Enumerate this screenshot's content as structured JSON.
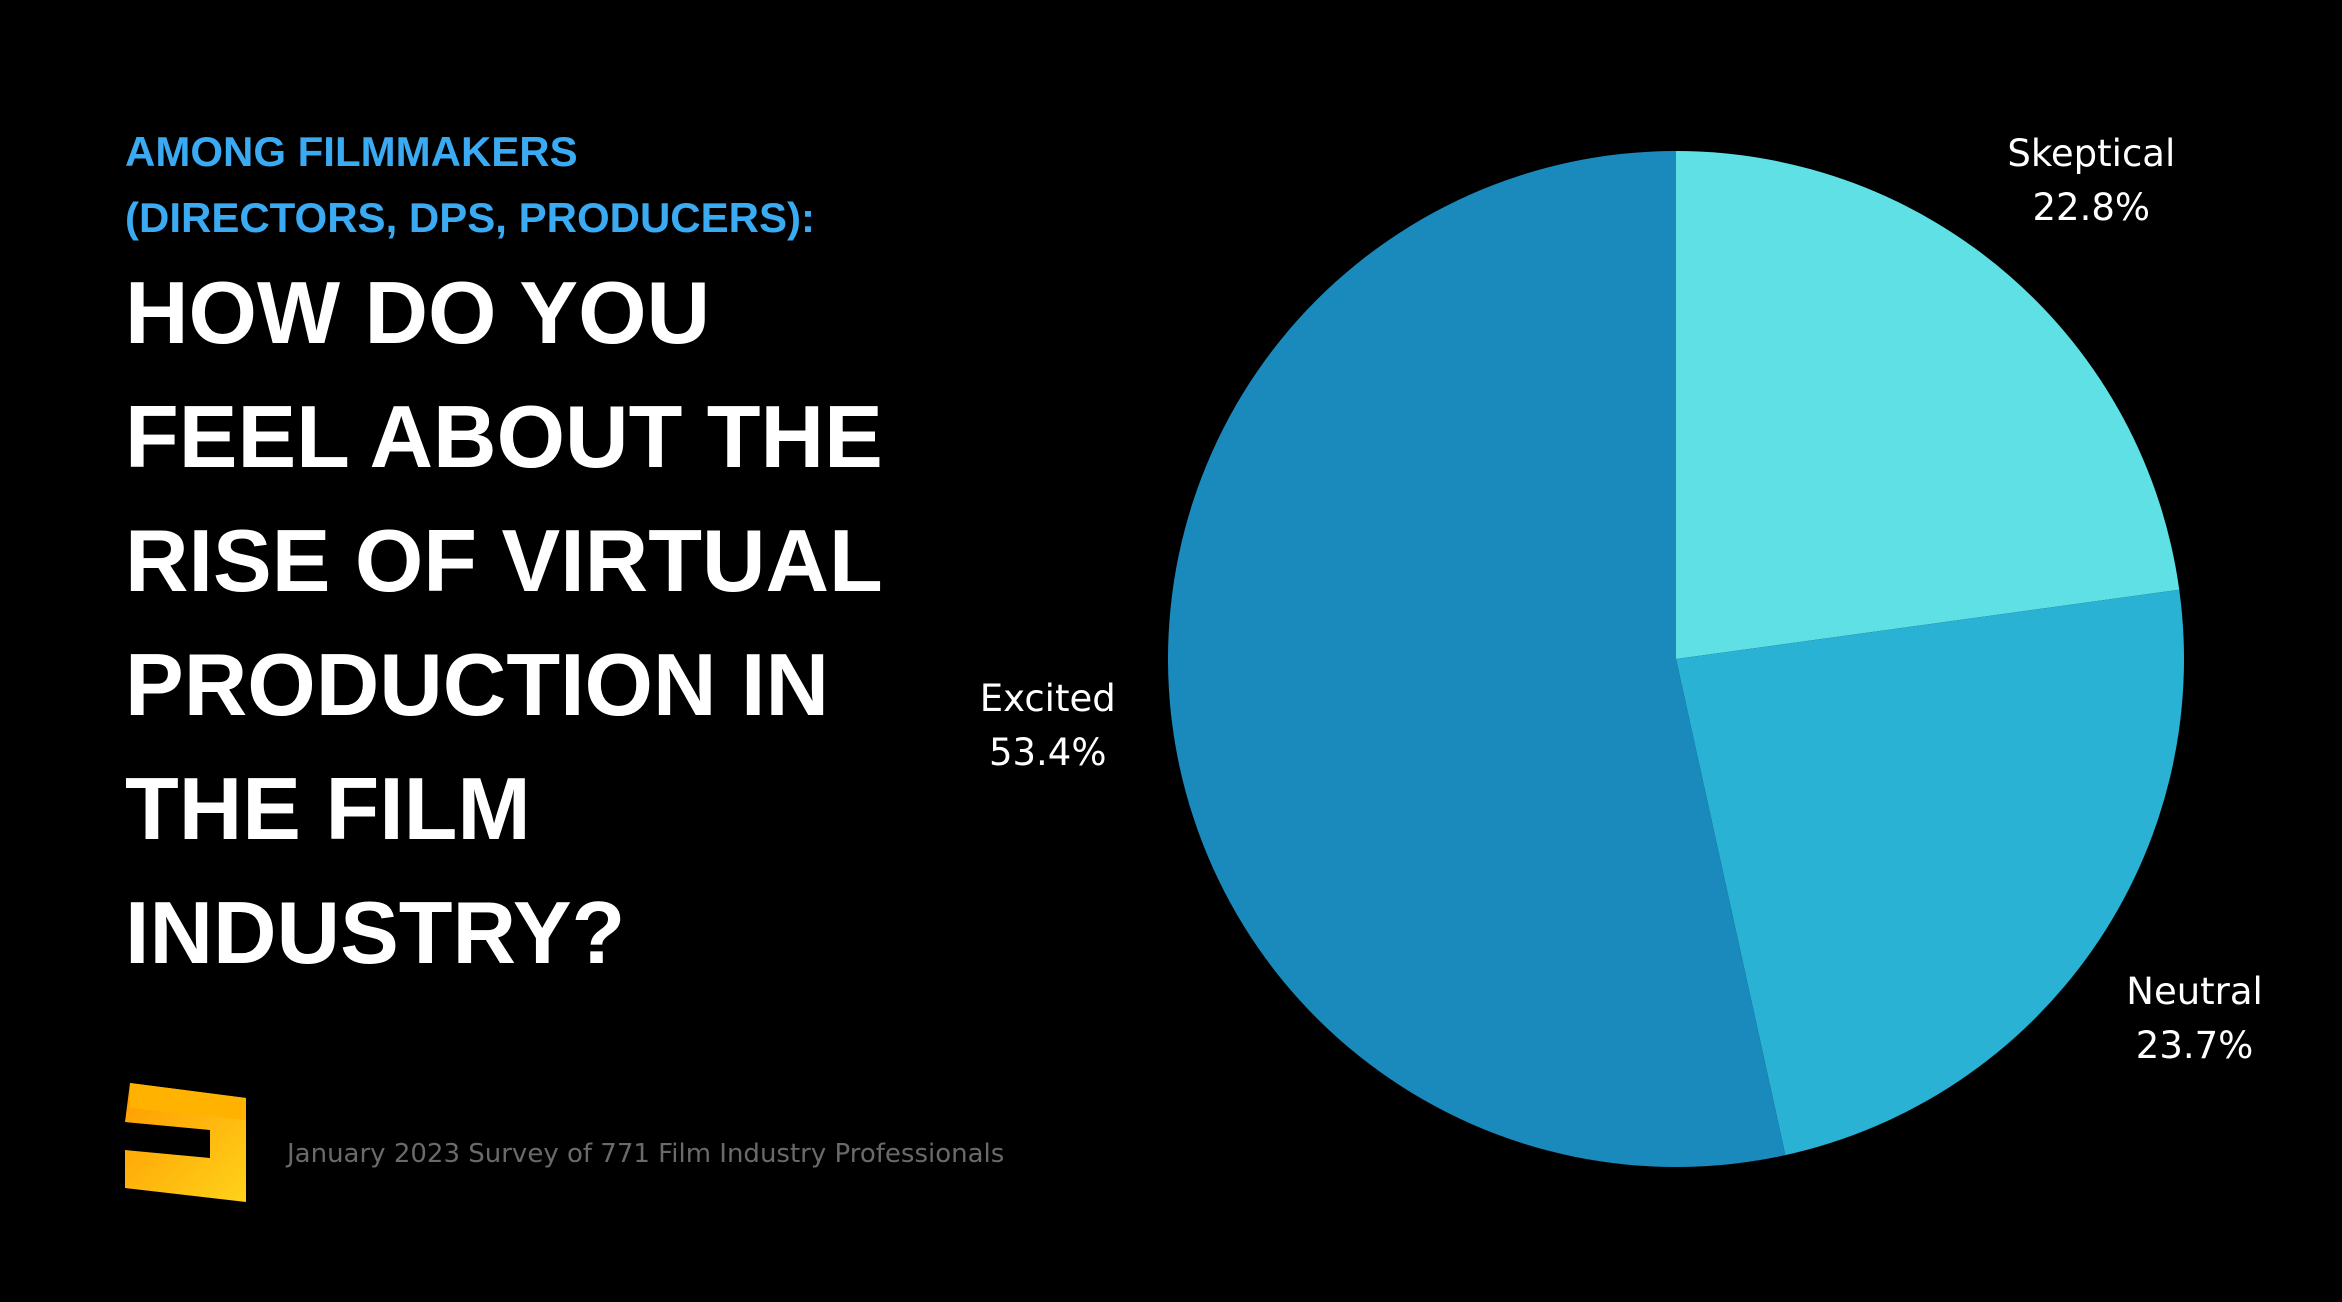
{
  "header": {
    "subtitle_lines": [
      "AMONG FILMMAKERS",
      "(DIRECTORS, DPS, PRODUCERS):"
    ],
    "title_lines": [
      "HOW DO YOU",
      "FEEL ABOUT THE",
      "RISE OF VIRTUAL",
      "PRODUCTION IN",
      "THE FILM",
      "INDUSTRY?"
    ]
  },
  "footnote": "January 2023 Survey of 771 Film Industry Professionals",
  "chart_data": {
    "type": "pie",
    "categories": [
      "Skeptical",
      "Neutral",
      "Excited"
    ],
    "values": [
      22.8,
      23.7,
      53.4
    ],
    "value_labels": [
      "22.8%",
      "23.7%",
      "53.4%"
    ],
    "colors": [
      "#5ee0e4",
      "#29b2d4",
      "#1a8abd"
    ]
  }
}
